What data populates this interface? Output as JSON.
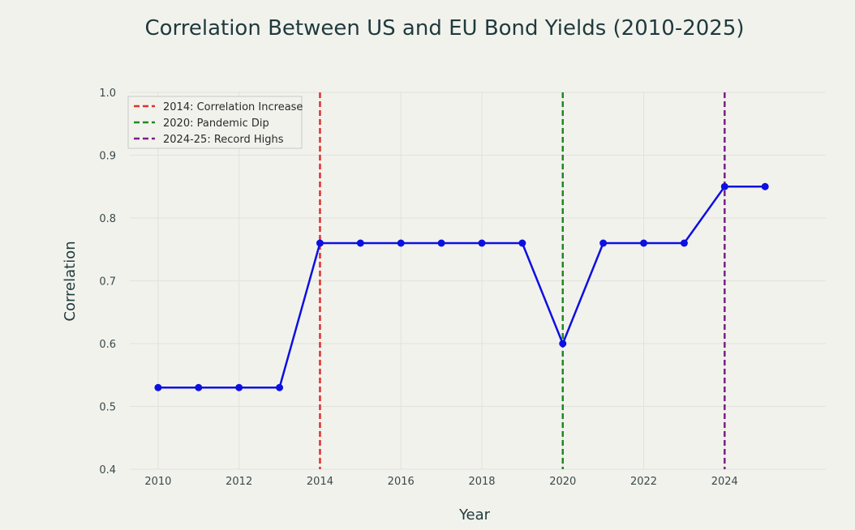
{
  "chart_data": {
    "type": "line",
    "title": "Correlation Between US and EU Bond Yields (2010-2025)",
    "xlabel": "Year",
    "ylabel": "Correlation",
    "xlim": [
      2009.3,
      2026.5
    ],
    "ylim": [
      0.4,
      1.0
    ],
    "xticks": [
      2010,
      2012,
      2014,
      2016,
      2018,
      2020,
      2022,
      2024
    ],
    "yticks": [
      "0.4",
      "0.5",
      "0.6",
      "0.7",
      "0.8",
      "0.9",
      "1.0"
    ],
    "grid": true,
    "legend_position": "top-left",
    "series": [
      {
        "name": "Correlation",
        "color": "#0d10e0",
        "x": [
          2010,
          2011,
          2012,
          2013,
          2014,
          2015,
          2016,
          2017,
          2018,
          2019,
          2020,
          2021,
          2022,
          2023,
          2024,
          2025
        ],
        "y": [
          0.53,
          0.53,
          0.53,
          0.53,
          0.76,
          0.76,
          0.76,
          0.76,
          0.76,
          0.76,
          0.6,
          0.76,
          0.76,
          0.76,
          0.85,
          0.85
        ]
      }
    ],
    "vlines": [
      {
        "x": 2014,
        "label": "2014: Correlation Increase",
        "color": "#e0302a"
      },
      {
        "x": 2020,
        "label": "2020: Pandemic Dip",
        "color": "#1f8a1f"
      },
      {
        "x": 2024,
        "label": "2024-25: Record Highs",
        "color": "#7a1f8a"
      }
    ]
  }
}
